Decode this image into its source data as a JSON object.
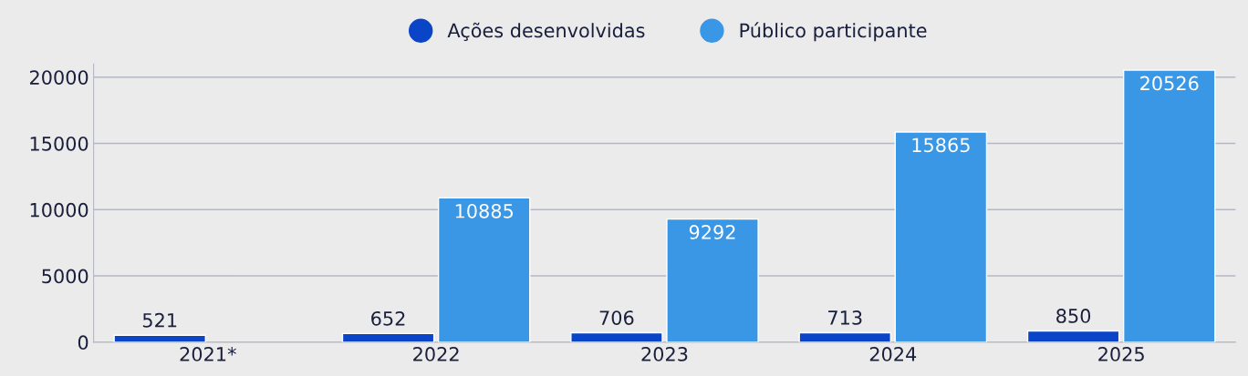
{
  "chart_data": {
    "type": "bar",
    "categories": [
      "2021*",
      "2022",
      "2023",
      "2024",
      "2025"
    ],
    "series": [
      {
        "name": "Ações desenvolvidas",
        "color": "#0a45c8",
        "values": [
          521,
          652,
          706,
          713,
          850
        ]
      },
      {
        "name": "Público participante",
        "color": "#3a97e6",
        "values": [
          null,
          10885,
          9292,
          15865,
          20526
        ]
      }
    ],
    "ylim": [
      0,
      21000
    ],
    "yticks": [
      0,
      5000,
      10000,
      15000,
      20000
    ],
    "grid": "y",
    "legend": "top",
    "data_labels": true
  }
}
